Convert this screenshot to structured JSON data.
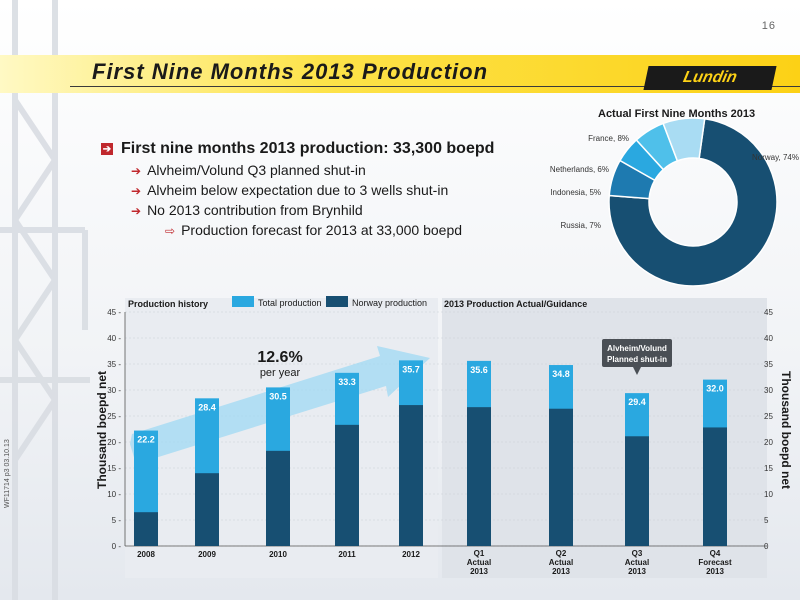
{
  "page_number": "16",
  "title": "First Nine Months 2013 Production",
  "logo_text": "Lundin",
  "bullets": {
    "main": "First nine months 2013 production: 33,300 boepd",
    "sub": [
      "Alvheim/Volund Q3 planned shut-in",
      "Alvheim below expectation due to 3 wells shut-in",
      "No 2013 contribution from Brynhild"
    ],
    "subsub": "Production forecast for 2013 at 33,000 boepd"
  },
  "side_note": "WF11714 p3 03.10.13",
  "colors": {
    "total": "#2aa8e0",
    "norway": "#174f72",
    "accent_red": "#c0282d",
    "title_yellow": "#fcd116"
  },
  "chart_data": [
    {
      "type": "pie",
      "title": "Actual First Nine Months 2013",
      "donut": true,
      "slices": [
        {
          "label": "Norway, 74%",
          "value": 74,
          "color": "#174f72"
        },
        {
          "label": "Russia, 7%",
          "value": 7,
          "color": "#1e7ab0"
        },
        {
          "label": "Indonesia, 5%",
          "value": 5,
          "color": "#2aa8e0"
        },
        {
          "label": "Netherlands, 6%",
          "value": 6,
          "color": "#4fc0ea"
        },
        {
          "label": "France, 8%",
          "value": 8,
          "color": "#a9dcf3"
        }
      ]
    },
    {
      "type": "bar",
      "title": "Production history",
      "ylabel": "Thousand boepd net",
      "ylim": [
        0,
        45
      ],
      "yticks": [
        "0",
        "5",
        "10",
        "15",
        "20",
        "25",
        "30",
        "35",
        "40",
        "45"
      ],
      "legend": [
        "Total production",
        "Norway production"
      ],
      "categories": [
        "2008",
        "2009",
        "2010",
        "2011",
        "2012"
      ],
      "series": [
        {
          "name": "Total production",
          "values": [
            22.2,
            28.4,
            30.5,
            33.3,
            35.7
          ],
          "labels": [
            "22.2",
            "28.4",
            "30.5",
            "33.3",
            "35.7"
          ]
        },
        {
          "name": "Norway production",
          "values": [
            6.5,
            14,
            18.3,
            23.3,
            27.1
          ]
        }
      ],
      "annotation": {
        "big": "12.6%",
        "small": "per year"
      }
    },
    {
      "type": "bar",
      "title": "2013 Production Actual/Guidance",
      "ylabel": "Thousand boepd net",
      "ylim": [
        0,
        45
      ],
      "yticks": [
        "0",
        "5",
        "10",
        "15",
        "20",
        "25",
        "30",
        "35",
        "40",
        "45"
      ],
      "categories": [
        {
          "line1": "Q1",
          "line2": "Actual",
          "line3": "2013"
        },
        {
          "line1": "Q2",
          "line2": "Actual",
          "line3": "2013"
        },
        {
          "line1": "Q3",
          "line2": "Actual",
          "line3": "2013"
        },
        {
          "line1": "Q4",
          "line2": "Forecast",
          "line3": "2013"
        }
      ],
      "series": [
        {
          "name": "Total production",
          "values": [
            35.6,
            34.8,
            29.4,
            32.0
          ],
          "labels": [
            "35.6",
            "34.8",
            "29.4",
            "32.0"
          ]
        },
        {
          "name": "Norway production",
          "values": [
            26.7,
            26.4,
            21.1,
            22.8
          ]
        }
      ],
      "callout": {
        "line1": "Alvheim/Volund",
        "line2": "Planned shut-in"
      }
    }
  ]
}
